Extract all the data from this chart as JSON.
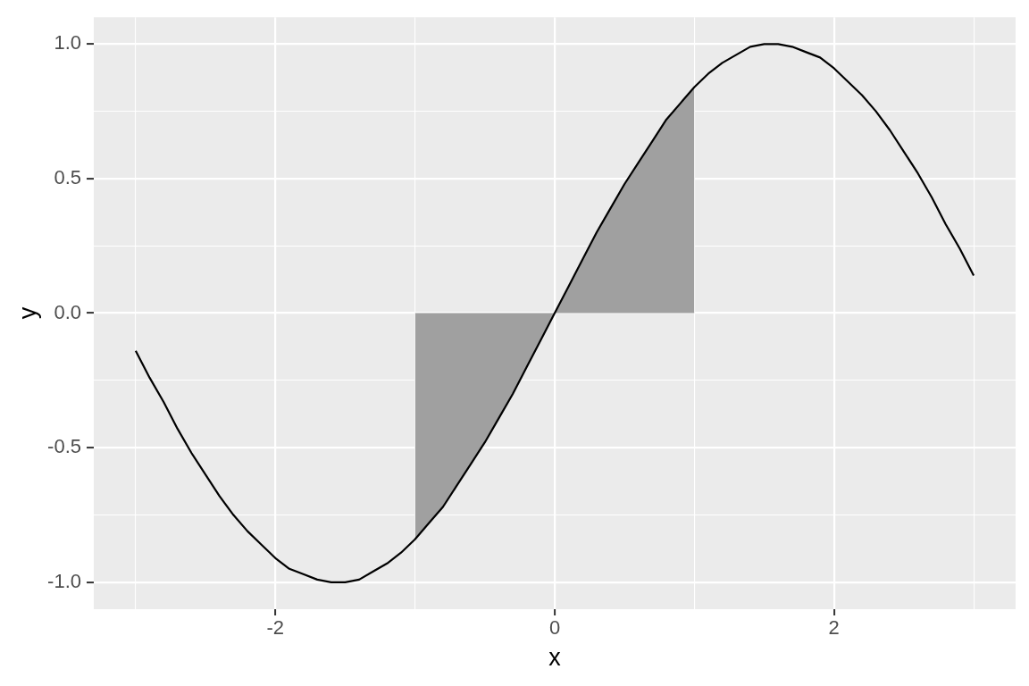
{
  "chart_data": {
    "type": "line",
    "xlabel": "x",
    "ylabel": "y",
    "xlim": [
      -3.3,
      3.3
    ],
    "xticks": [
      {
        "value": -3,
        "label": null
      },
      -2,
      {
        "value": -1,
        "label": null
      },
      0,
      {
        "value": 1,
        "label": null
      },
      2,
      {
        "value": 3,
        "label": null
      }
    ],
    "ylim": [
      -1.1,
      1.1
    ],
    "yticks": [
      {
        "value": -1,
        "label": "-1.0"
      },
      {
        "value": -0.75,
        "label": null
      },
      -0.5,
      {
        "value": -0.25,
        "label": null
      },
      {
        "value": 0,
        "label": "0.0"
      },
      {
        "value": 0.25,
        "label": null
      },
      0.5,
      {
        "value": 0.75,
        "label": null
      },
      {
        "value": 1,
        "label": "1.0"
      }
    ],
    "grid": true,
    "series": [
      {
        "type": "area",
        "color": "#a0a0a0",
        "x": [
          -1,
          -0.9,
          -0.8,
          -0.7,
          -0.6,
          -0.5,
          -0.4,
          -0.3,
          -0.2,
          -0.1,
          0,
          0.1,
          0.2,
          0.3,
          0.4,
          0.5,
          0.6,
          0.7,
          0.8,
          0.9,
          1
        ],
        "values": [
          -0.84,
          -0.78,
          -0.72,
          -0.64,
          -0.56,
          -0.48,
          -0.39,
          -0.3,
          -0.2,
          -0.1,
          0,
          0.1,
          0.2,
          0.3,
          0.39,
          0.48,
          0.56,
          0.64,
          0.72,
          0.78,
          0.84
        ]
      },
      {
        "type": "line",
        "color": "#000000",
        "x": [
          -3,
          -2.9,
          -2.8,
          -2.7,
          -2.6,
          -2.5,
          -2.4,
          -2.3,
          -2.2,
          -2.1,
          -2,
          -1.9,
          -1.8,
          -1.7,
          -1.6,
          -1.5,
          -1.4,
          -1.3,
          -1.2,
          -1.1,
          -1,
          -0.9,
          -0.8,
          -0.7,
          -0.6,
          -0.5,
          -0.4,
          -0.3,
          -0.2,
          -0.1,
          0,
          0.1,
          0.2,
          0.3,
          0.4,
          0.5,
          0.6,
          0.7,
          0.8,
          0.9,
          1,
          1.1,
          1.2,
          1.3,
          1.4,
          1.5,
          1.6,
          1.7,
          1.8,
          1.9,
          2,
          2.1,
          2.2,
          2.3,
          2.4,
          2.5,
          2.6,
          2.7,
          2.8,
          2.9,
          3
        ],
        "values": [
          -0.14,
          -0.24,
          -0.33,
          -0.43,
          -0.52,
          -0.6,
          -0.68,
          -0.75,
          -0.81,
          -0.86,
          -0.91,
          -0.95,
          -0.97,
          -0.99,
          -1,
          -1,
          -0.99,
          -0.96,
          -0.93,
          -0.89,
          -0.84,
          -0.78,
          -0.72,
          -0.64,
          -0.56,
          -0.48,
          -0.39,
          -0.3,
          -0.2,
          -0.1,
          0,
          0.1,
          0.2,
          0.3,
          0.39,
          0.48,
          0.56,
          0.64,
          0.72,
          0.78,
          0.84,
          0.89,
          0.93,
          0.96,
          0.99,
          1,
          1,
          0.99,
          0.97,
          0.95,
          0.91,
          0.86,
          0.81,
          0.75,
          0.68,
          0.6,
          0.52,
          0.43,
          0.33,
          0.24,
          0.14
        ]
      }
    ]
  }
}
